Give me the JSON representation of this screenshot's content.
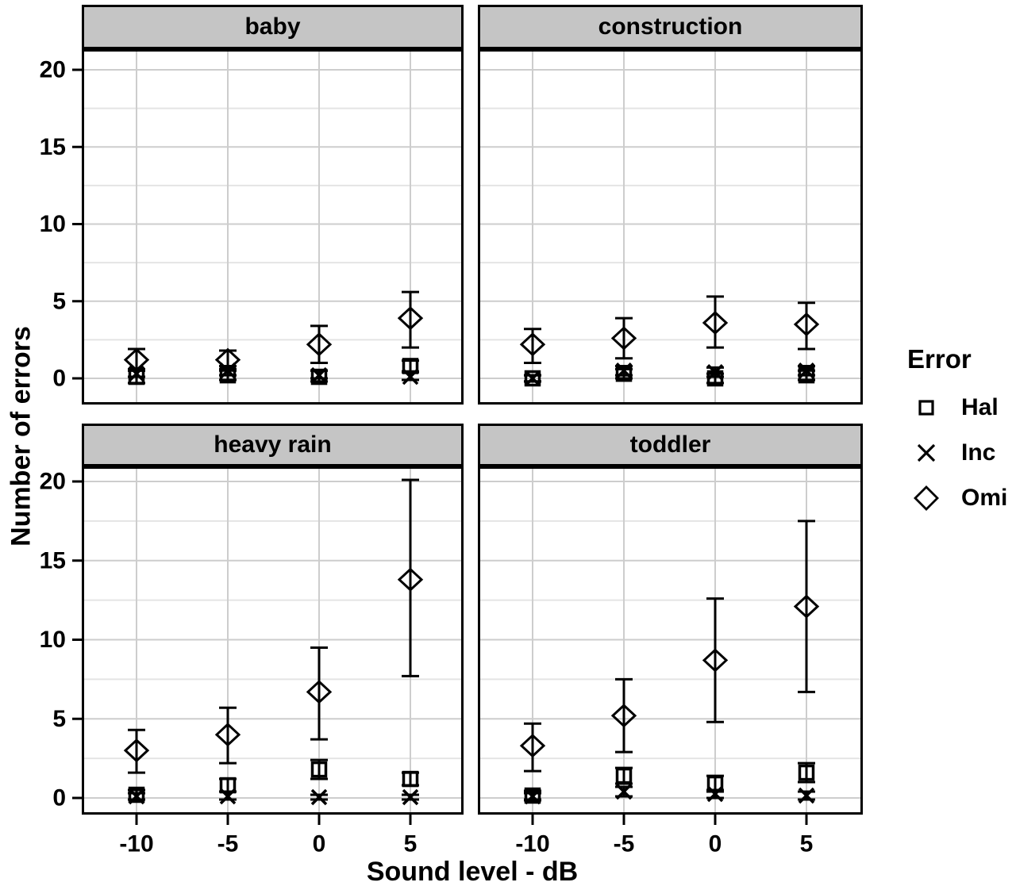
{
  "figure_title": "",
  "axes": {
    "x_title": "Sound level - dB",
    "y_title": "Number of errors"
  },
  "legend": {
    "title": "Error",
    "entries": [
      {
        "label": "Hal",
        "marker": "square"
      },
      {
        "label": "Inc",
        "marker": "cross"
      },
      {
        "label": "Omi",
        "marker": "diamond"
      }
    ]
  },
  "colors": {
    "ink": "#000000",
    "strip_background": "#c5c5c5",
    "grid_major": "#cdcdcd",
    "grid_minor": "#e4e4e4",
    "panel_background": "#ffffff"
  },
  "chart_data": {
    "type": "scatter",
    "subtype": "faceted-means-with-error-bars",
    "facet_layout": [
      "baby",
      "construction",
      "heavy rain",
      "toddler"
    ],
    "x": [
      -10,
      -5,
      0,
      5
    ],
    "xlabel": "Sound level - dB",
    "ylabel": "Number of errors",
    "ylim": [
      0,
      20
    ],
    "yticks": [
      0,
      5,
      10,
      15,
      20
    ],
    "yticks_minor": [
      2.5,
      7.5,
      12.5,
      17.5
    ],
    "grid": true,
    "legend_position": "right",
    "point_format": "[mean, lower, upper]",
    "panels": [
      {
        "title": "baby",
        "series": [
          {
            "name": "Hal",
            "marker": "square",
            "points": [
              [
                0.1,
                -0.3,
                0.5
              ],
              [
                0.2,
                -0.1,
                0.6
              ],
              [
                0.1,
                -0.2,
                0.5
              ],
              [
                0.8,
                0.45,
                1.15
              ]
            ]
          },
          {
            "name": "Inc",
            "marker": "cross",
            "points": [
              [
                0.3,
                0.1,
                0.6
              ],
              [
                0.5,
                0.2,
                0.8
              ],
              [
                0.2,
                0.0,
                0.5
              ],
              [
                0.1,
                -0.1,
                0.4
              ]
            ]
          },
          {
            "name": "Omi",
            "marker": "diamond",
            "points": [
              [
                1.2,
                0.5,
                1.9
              ],
              [
                1.2,
                0.5,
                1.8
              ],
              [
                2.2,
                1.0,
                3.4
              ],
              [
                3.9,
                2.0,
                5.6
              ]
            ]
          }
        ]
      },
      {
        "title": "construction",
        "series": [
          {
            "name": "Hal",
            "marker": "square",
            "points": [
              [
                0.0,
                -0.2,
                0.2
              ],
              [
                0.3,
                0.0,
                0.6
              ],
              [
                0.0,
                -0.3,
                0.3
              ],
              [
                0.2,
                -0.1,
                0.5
              ]
            ]
          },
          {
            "name": "Inc",
            "marker": "cross",
            "points": [
              [
                0.0,
                -0.2,
                0.2
              ],
              [
                0.5,
                0.2,
                0.8
              ],
              [
                0.4,
                0.1,
                0.7
              ],
              [
                0.5,
                0.2,
                0.8
              ]
            ]
          },
          {
            "name": "Omi",
            "marker": "diamond",
            "points": [
              [
                2.2,
                1.0,
                3.2
              ],
              [
                2.6,
                1.3,
                3.9
              ],
              [
                3.6,
                2.0,
                5.3
              ],
              [
                3.5,
                1.9,
                4.9
              ]
            ]
          }
        ]
      },
      {
        "title": "heavy rain",
        "series": [
          {
            "name": "Hal",
            "marker": "square",
            "points": [
              [
                0.2,
                -0.1,
                0.5
              ],
              [
                0.8,
                0.4,
                1.2
              ],
              [
                1.8,
                1.2,
                2.4
              ],
              [
                1.2,
                0.8,
                1.6
              ]
            ]
          },
          {
            "name": "Inc",
            "marker": "cross",
            "points": [
              [
                0.1,
                -0.1,
                0.3
              ],
              [
                0.1,
                -0.1,
                0.4
              ],
              [
                0.05,
                -0.1,
                0.2
              ],
              [
                0.05,
                -0.1,
                0.2
              ]
            ]
          },
          {
            "name": "Omi",
            "marker": "diamond",
            "points": [
              [
                3.0,
                1.6,
                4.3
              ],
              [
                4.0,
                2.2,
                5.7
              ],
              [
                6.7,
                3.7,
                9.5
              ],
              [
                13.8,
                7.7,
                20.1
              ]
            ]
          }
        ]
      },
      {
        "title": "toddler",
        "series": [
          {
            "name": "Hal",
            "marker": "square",
            "points": [
              [
                0.15,
                -0.15,
                0.45
              ],
              [
                1.4,
                0.9,
                1.9
              ],
              [
                0.9,
                0.4,
                1.4
              ],
              [
                1.6,
                1.0,
                2.2
              ]
            ]
          },
          {
            "name": "Inc",
            "marker": "cross",
            "points": [
              [
                0.1,
                -0.1,
                0.3
              ],
              [
                0.4,
                0.1,
                0.7
              ],
              [
                0.25,
                0.0,
                0.5
              ],
              [
                0.15,
                -0.1,
                0.4
              ]
            ]
          },
          {
            "name": "Omi",
            "marker": "diamond",
            "points": [
              [
                3.3,
                1.7,
                4.7
              ],
              [
                5.2,
                2.9,
                7.5
              ],
              [
                8.7,
                4.8,
                12.6
              ],
              [
                12.1,
                6.7,
                17.5
              ]
            ]
          }
        ]
      }
    ]
  }
}
